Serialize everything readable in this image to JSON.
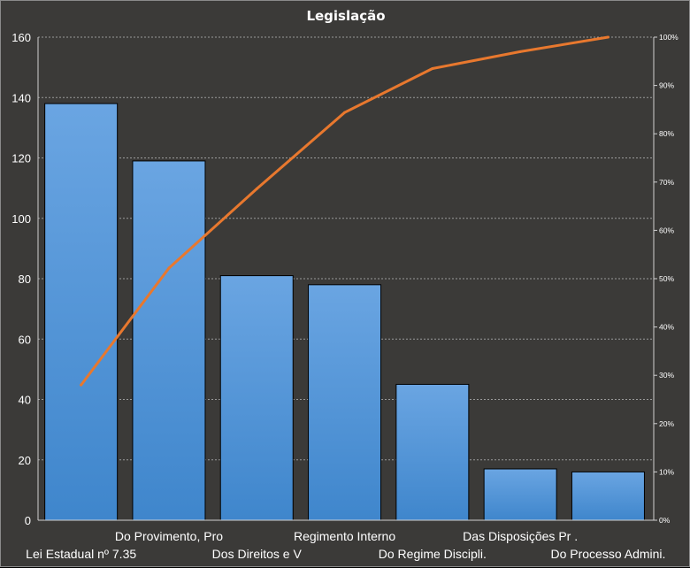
{
  "chart_data": {
    "type": "bar",
    "title": "Legislação",
    "categories": [
      "Lei Estadual nº 7.35",
      "Do Provimento,  Pro",
      "Dos Direitos e V",
      "Regimento Interno",
      "Do Regime Discipli.",
      "Das Disposições Pr .",
      "Do Processo Admini."
    ],
    "series": [
      {
        "type": "bar",
        "values": [
          138,
          119,
          81,
          78,
          45,
          17,
          16
        ]
      },
      {
        "type": "line",
        "axis": "secondary",
        "values": [
          28.0,
          52.2,
          68.6,
          84.4,
          93.5,
          97.0,
          100.0
        ]
      }
    ],
    "ylim": [
      0,
      160
    ],
    "yticks": [
      0,
      20,
      40,
      60,
      80,
      100,
      120,
      140,
      160
    ],
    "y2lim": [
      0,
      100
    ],
    "y2ticks": [
      "0%",
      "10%",
      "20%",
      "30%",
      "40%",
      "50%",
      "60%",
      "70%",
      "80%",
      "90%",
      "100%"
    ],
    "grid": true,
    "legend": "none",
    "colors": {
      "bar": "#4e93d8",
      "line": "#e8782e",
      "background": "#3b3a38",
      "grid": "#9a9a9a"
    }
  }
}
